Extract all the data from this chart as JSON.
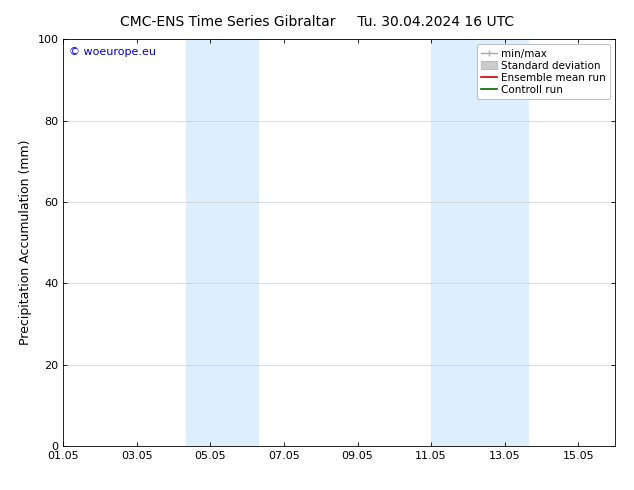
{
  "title_left": "CMC-ENS Time Series Gibraltar",
  "title_right": "Tu. 30.04.2024 16 UTC",
  "ylabel": "Precipitation Accumulation (mm)",
  "watermark": "© woeurope.eu",
  "watermark_color": "#0000cc",
  "ylim": [
    0,
    100
  ],
  "yticks": [
    0,
    20,
    40,
    60,
    80,
    100
  ],
  "xlim": [
    0,
    15
  ],
  "xtick_labels": [
    "01.05",
    "03.05",
    "05.05",
    "07.05",
    "09.05",
    "11.05",
    "13.05",
    "15.05"
  ],
  "xtick_positions": [
    0,
    2,
    4,
    6,
    8,
    10,
    12,
    14
  ],
  "shaded_regions": [
    {
      "x_start": 3.33,
      "x_end": 5.33
    },
    {
      "x_start": 10.0,
      "x_end": 12.67
    }
  ],
  "shade_color": "#ddeeff",
  "background_color": "#ffffff",
  "grid_color": "#cccccc",
  "title_fontsize": 10,
  "tick_fontsize": 8,
  "ylabel_fontsize": 9,
  "legend_fontsize": 7.5,
  "watermark_fontsize": 8
}
